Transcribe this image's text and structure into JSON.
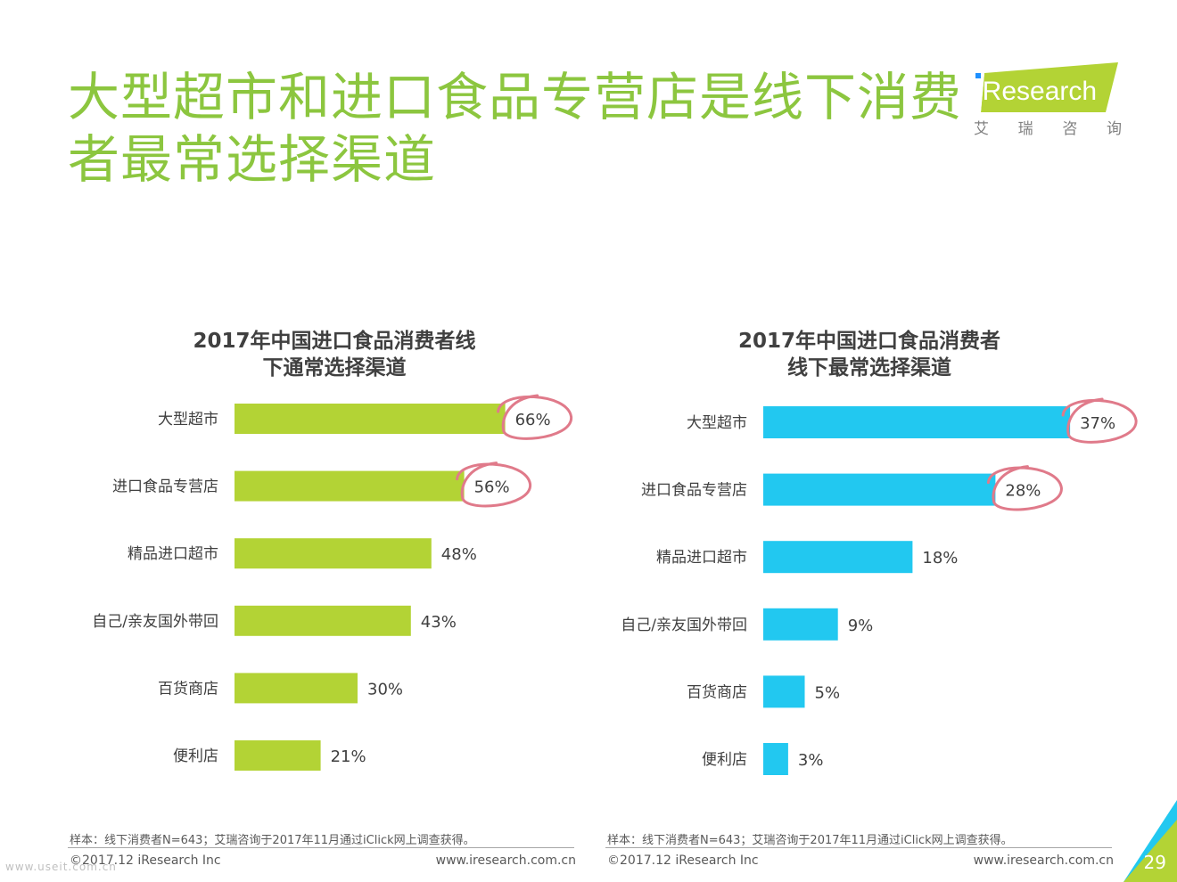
{
  "page": {
    "title_line1": "大型超市和进口食品专营店是线下消费",
    "title_line2": "者最常选择渠道",
    "page_number": "29",
    "watermark": "www.useit.com.cn"
  },
  "logo": {
    "text": "iResearch",
    "subtitle": [
      "艾",
      "瑞",
      "咨",
      "询"
    ]
  },
  "colors": {
    "title": "#8cc63f",
    "left_bar": "#b3d335",
    "right_bar": "#22c8f0",
    "highlight_circle": "#e07a8a"
  },
  "charts": [
    {
      "title_line1": "2017年中国进口食品消费者线",
      "title_line2": "下通常选择渠道",
      "note": "样本：线下消费者N=643；艾瑞咨询于2017年11月通过iClick网上调查获得。",
      "copyright": "©2017.12 iResearch Inc",
      "website": "www.iresearch.com.cn"
    },
    {
      "title_line1": "2017年中国进口食品消费者",
      "title_line2": "线下最常选择渠道",
      "note": "样本：线下消费者N=643；艾瑞咨询于2017年11月通过iClick网上调查获得。",
      "copyright": "©2017.12 iResearch Inc",
      "website": "www.iresearch.com.cn"
    }
  ],
  "chart_data": [
    {
      "type": "bar",
      "orientation": "horizontal",
      "title": "2017年中国进口食品消费者线下通常选择渠道",
      "categories": [
        "大型超市",
        "进口食品专营店",
        "精品进口超市",
        "自己/亲友国外带回",
        "百货商店",
        "便利店"
      ],
      "values": [
        66,
        56,
        48,
        43,
        30,
        21
      ],
      "labels": [
        "66%",
        "56%",
        "48%",
        "43%",
        "30%",
        "21%"
      ],
      "unit": "%",
      "xlim": [
        0,
        100
      ],
      "color": "#b3d335",
      "highlighted": [
        0,
        1
      ],
      "grid": false
    },
    {
      "type": "bar",
      "orientation": "horizontal",
      "title": "2017年中国进口食品消费者线下最常选择渠道",
      "categories": [
        "大型超市",
        "进口食品专营店",
        "精品进口超市",
        "自己/亲友国外带回",
        "百货商店",
        "便利店"
      ],
      "values": [
        37,
        28,
        18,
        9,
        5,
        3
      ],
      "labels": [
        "37%",
        "28%",
        "18%",
        "9%",
        "5%",
        "3%"
      ],
      "unit": "%",
      "xlim": [
        0,
        100
      ],
      "color": "#22c8f0",
      "highlighted": [
        0,
        1
      ],
      "grid": false
    }
  ]
}
